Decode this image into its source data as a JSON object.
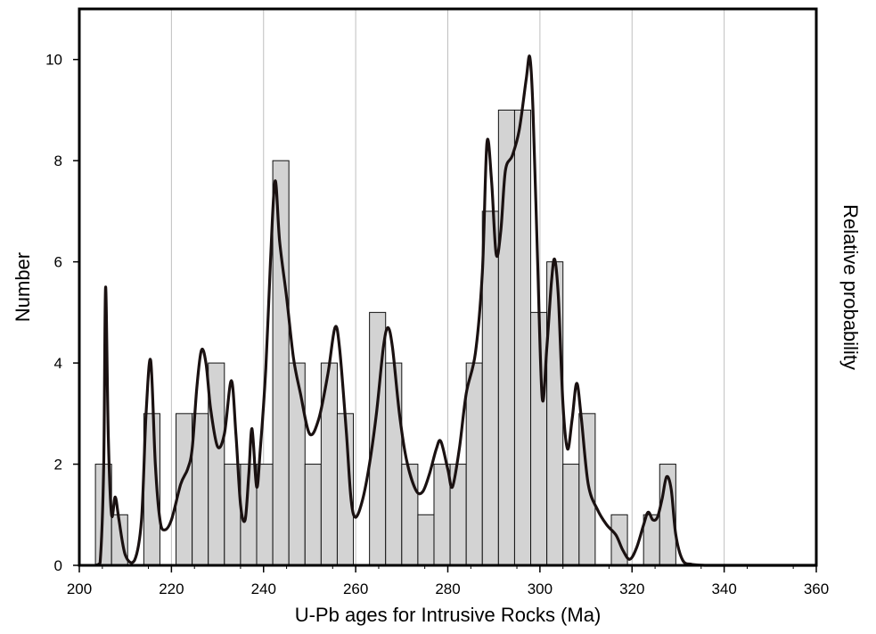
{
  "chart_data": {
    "type": "bar",
    "subtype": "histogram-with-probability-curve",
    "xlabel": "U-Pb ages for Intrusive Rocks (Ma)",
    "ylabel": "Number",
    "ylabel_right": "Relative probability",
    "xlim": [
      200,
      360
    ],
    "ylim": [
      0,
      11
    ],
    "x_ticks": [
      200,
      220,
      240,
      260,
      280,
      300,
      320,
      340,
      360
    ],
    "y_ticks": [
      0,
      2,
      4,
      6,
      8,
      10
    ],
    "grid": "vertical-lines",
    "bin_width": 3.5,
    "bins": [
      {
        "start": 203.5,
        "count": 2
      },
      {
        "start": 207.0,
        "count": 1
      },
      {
        "start": 214.0,
        "count": 3
      },
      {
        "start": 221.0,
        "count": 3
      },
      {
        "start": 224.5,
        "count": 3
      },
      {
        "start": 228.0,
        "count": 4
      },
      {
        "start": 231.5,
        "count": 2
      },
      {
        "start": 235.0,
        "count": 2
      },
      {
        "start": 238.5,
        "count": 2
      },
      {
        "start": 242.0,
        "count": 8
      },
      {
        "start": 245.5,
        "count": 4
      },
      {
        "start": 249.0,
        "count": 2
      },
      {
        "start": 252.5,
        "count": 4
      },
      {
        "start": 256.0,
        "count": 3
      },
      {
        "start": 263.0,
        "count": 5
      },
      {
        "start": 266.5,
        "count": 4
      },
      {
        "start": 270.0,
        "count": 2
      },
      {
        "start": 273.5,
        "count": 1
      },
      {
        "start": 277.0,
        "count": 2
      },
      {
        "start": 280.5,
        "count": 2
      },
      {
        "start": 284.0,
        "count": 4
      },
      {
        "start": 287.5,
        "count": 7
      },
      {
        "start": 291.0,
        "count": 9
      },
      {
        "start": 294.5,
        "count": 9
      },
      {
        "start": 298.0,
        "count": 5
      },
      {
        "start": 301.5,
        "count": 6
      },
      {
        "start": 305.0,
        "count": 2
      },
      {
        "start": 308.5,
        "count": 3
      },
      {
        "start": 315.5,
        "count": 1
      },
      {
        "start": 322.5,
        "count": 1
      },
      {
        "start": 326.0,
        "count": 2
      }
    ],
    "probability_curve": [
      [
        203.5,
        0
      ],
      [
        204.5,
        0.05
      ],
      [
        205.3,
        2.0
      ],
      [
        205.7,
        5.5
      ],
      [
        206.3,
        2.5
      ],
      [
        207.0,
        1.0
      ],
      [
        207.8,
        1.35
      ],
      [
        208.6,
        0.9
      ],
      [
        210.0,
        0.2
      ],
      [
        212.0,
        0.1
      ],
      [
        213.5,
        0.9
      ],
      [
        214.5,
        3.0
      ],
      [
        215.5,
        4.05
      ],
      [
        216.5,
        2.0
      ],
      [
        217.5,
        0.9
      ],
      [
        218.5,
        0.7
      ],
      [
        220.0,
        0.9
      ],
      [
        222.0,
        1.6
      ],
      [
        223.5,
        1.9
      ],
      [
        224.5,
        2.3
      ],
      [
        225.5,
        3.5
      ],
      [
        226.5,
        4.25
      ],
      [
        227.5,
        4.0
      ],
      [
        228.5,
        3.1
      ],
      [
        230.0,
        2.35
      ],
      [
        231.5,
        2.6
      ],
      [
        233.0,
        3.65
      ],
      [
        234.0,
        2.6
      ],
      [
        235.0,
        1.2
      ],
      [
        236.0,
        0.9
      ],
      [
        236.8,
        1.8
      ],
      [
        237.5,
        2.7
      ],
      [
        238.5,
        1.55
      ],
      [
        239.3,
        2.3
      ],
      [
        240.5,
        3.9
      ],
      [
        241.5,
        6.0
      ],
      [
        242.5,
        7.6
      ],
      [
        243.5,
        6.4
      ],
      [
        245.0,
        5.3
      ],
      [
        246.5,
        4.1
      ],
      [
        248.0,
        3.4
      ],
      [
        250.0,
        2.6
      ],
      [
        252.0,
        2.9
      ],
      [
        254.0,
        3.8
      ],
      [
        255.5,
        4.7
      ],
      [
        256.5,
        4.3
      ],
      [
        258.0,
        2.6
      ],
      [
        259.0,
        1.3
      ],
      [
        260.0,
        0.95
      ],
      [
        261.5,
        1.3
      ],
      [
        263.0,
        2.0
      ],
      [
        264.5,
        3.0
      ],
      [
        266.0,
        4.3
      ],
      [
        267.0,
        4.7
      ],
      [
        268.0,
        4.3
      ],
      [
        269.5,
        3.0
      ],
      [
        271.0,
        2.1
      ],
      [
        273.0,
        1.5
      ],
      [
        274.5,
        1.45
      ],
      [
        276.0,
        1.8
      ],
      [
        277.5,
        2.3
      ],
      [
        278.5,
        2.45
      ],
      [
        280.0,
        1.9
      ],
      [
        281.0,
        1.55
      ],
      [
        282.5,
        2.3
      ],
      [
        284.0,
        3.4
      ],
      [
        286.0,
        4.2
      ],
      [
        287.5,
        5.8
      ],
      [
        288.5,
        8.35
      ],
      [
        289.5,
        7.6
      ],
      [
        290.5,
        6.15
      ],
      [
        291.5,
        6.6
      ],
      [
        292.5,
        7.8
      ],
      [
        294.0,
        8.1
      ],
      [
        295.5,
        8.6
      ],
      [
        297.0,
        9.6
      ],
      [
        297.8,
        10.05
      ],
      [
        298.5,
        9.0
      ],
      [
        299.5,
        6.0
      ],
      [
        300.5,
        3.3
      ],
      [
        301.5,
        4.3
      ],
      [
        302.5,
        5.6
      ],
      [
        303.2,
        6.05
      ],
      [
        304.0,
        5.3
      ],
      [
        305.0,
        3.2
      ],
      [
        306.0,
        2.3
      ],
      [
        307.0,
        2.9
      ],
      [
        308.0,
        3.6
      ],
      [
        309.0,
        2.9
      ],
      [
        310.5,
        1.6
      ],
      [
        312.5,
        1.1
      ],
      [
        314.5,
        0.8
      ],
      [
        316.5,
        0.6
      ],
      [
        318.0,
        0.3
      ],
      [
        319.5,
        0.12
      ],
      [
        321.0,
        0.35
      ],
      [
        322.5,
        0.8
      ],
      [
        323.5,
        1.05
      ],
      [
        324.5,
        0.9
      ],
      [
        325.5,
        0.95
      ],
      [
        326.5,
        1.3
      ],
      [
        327.5,
        1.75
      ],
      [
        328.5,
        1.5
      ],
      [
        329.5,
        0.6
      ],
      [
        331.0,
        0.1
      ],
      [
        333.0,
        0.02
      ],
      [
        336.0,
        0
      ]
    ],
    "colors": {
      "bar_fill": "#d3d3d3",
      "bar_stroke": "#111111",
      "curve": "#1a1111",
      "grid": "#bfbfbf",
      "frame": "#000000"
    }
  }
}
